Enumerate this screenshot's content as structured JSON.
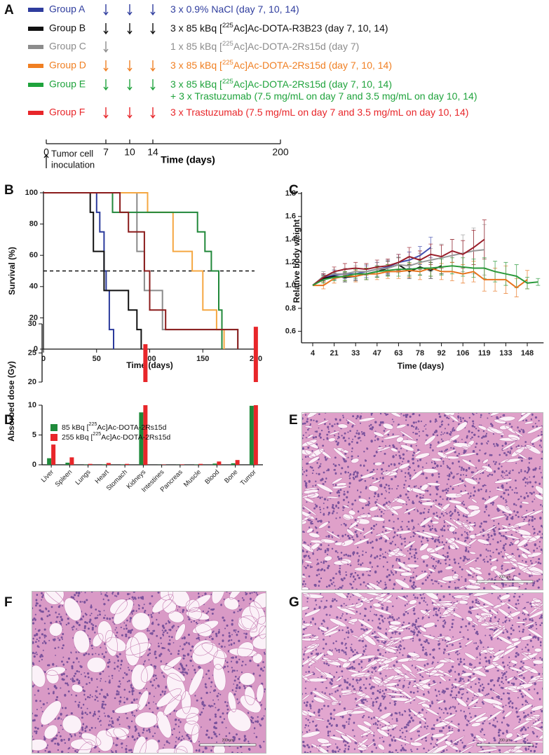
{
  "panel_labels": [
    "A",
    "B",
    "C",
    "D",
    "E",
    "F",
    "G"
  ],
  "schedule": {
    "groups": [
      {
        "name": "Group A",
        "color": "#2f3d9e",
        "doses": [
          7,
          10,
          14
        ],
        "treatment": "3 x 0.9% NaCl (day 7, 10, 14)"
      },
      {
        "name": "Group B",
        "color": "#111111",
        "doses": [
          7,
          10,
          14
        ],
        "treatment": "3 x 85 kBq [225Ac]Ac-DOTA-R3B23 (day 7, 10, 14)"
      },
      {
        "name": "Group C",
        "color": "#8c8c8c",
        "doses": [
          7
        ],
        "treatment": "1 x 85 kBq [225Ac]Ac-DOTA-2Rs15d (day 7)"
      },
      {
        "name": "Group D",
        "color": "#f07f22",
        "doses": [
          7,
          10,
          14
        ],
        "treatment": "3 x 85 kBq [225Ac]Ac-DOTA-2Rs15d (day 7, 10, 14)"
      },
      {
        "name": "Group E",
        "color": "#1fa33c",
        "doses": [
          7,
          10,
          14
        ],
        "treatment": [
          "3 x 85 kBq [225Ac]Ac-DOTA-2Rs15d (day 7, 10, 14)",
          "+ 3 x Trastuzumab (7.5 mg/mL on day 7 and 3.5 mg/mL on day 10, 14)"
        ]
      },
      {
        "name": "Group F",
        "color": "#e8262a",
        "doses": [
          7,
          10,
          14
        ],
        "treatment": "3 x Trastuzumab (7.5 mg/mL on day 7 and 3.5 mg/mL on day 10, 14)"
      }
    ],
    "xticks": [
      0,
      7,
      10,
      14,
      200
    ],
    "xlabel": "Time (days)",
    "annotation": [
      "Tumor cell",
      "inoculation"
    ]
  },
  "chart_data": [
    {
      "type": "line",
      "step": true,
      "xlabel": "Time (days)",
      "ylabel": "Survival (%)",
      "xlim": [
        0,
        200
      ],
      "xticks": [
        0,
        50,
        100,
        150,
        200
      ],
      "ylim": [
        0,
        100
      ],
      "yticks": [
        0,
        20,
        40,
        60,
        80,
        100
      ],
      "reference_line": 50,
      "series": [
        {
          "color": "#2b3a9c",
          "x": [
            0,
            50,
            50,
            53,
            53,
            57,
            57,
            59,
            59,
            62,
            62,
            66,
            66
          ],
          "values": [
            100,
            100,
            87.5,
            87.5,
            75,
            75,
            50,
            50,
            37.5,
            37.5,
            12.5,
            12.5,
            0
          ]
        },
        {
          "color": "#111111",
          "x": [
            0,
            44,
            44,
            47,
            47,
            57,
            57,
            80,
            80,
            88,
            88,
            92,
            92
          ],
          "values": [
            100,
            100,
            87.5,
            87.5,
            62.5,
            62.5,
            37.5,
            37.5,
            25,
            25,
            12.5,
            12.5,
            0
          ]
        },
        {
          "color": "#8a8a8a",
          "x": [
            0,
            88,
            88,
            95,
            95,
            112,
            112,
            183,
            183
          ],
          "values": [
            100,
            100,
            62.5,
            62.5,
            37.5,
            37.5,
            12.5,
            12.5,
            0
          ]
        },
        {
          "color": "#f5a742",
          "x": [
            0,
            98,
            98,
            122,
            122,
            140,
            140,
            150,
            150,
            163,
            163,
            170,
            170
          ],
          "values": [
            100,
            100,
            87.5,
            87.5,
            62.5,
            62.5,
            50,
            50,
            25,
            25,
            12.5,
            12.5,
            0
          ]
        },
        {
          "color": "#21883a",
          "x": [
            0,
            65,
            65,
            145,
            145,
            152,
            152,
            158,
            158,
            165,
            165,
            168,
            168
          ],
          "values": [
            100,
            100,
            87.5,
            87.5,
            75,
            75,
            62.5,
            62.5,
            50,
            50,
            25,
            25,
            0
          ]
        },
        {
          "color": "#8b1c1c",
          "x": [
            0,
            72,
            72,
            80,
            80,
            95,
            95,
            100,
            100,
            115,
            115,
            183,
            183
          ],
          "values": [
            100,
            100,
            87.5,
            87.5,
            75,
            75,
            50,
            50,
            25,
            25,
            12.5,
            12.5,
            0
          ]
        }
      ]
    },
    {
      "type": "line",
      "xlabel": "Time (days)",
      "ylabel": "Relative body weight",
      "categories": [
        "4",
        null,
        "21",
        null,
        "33",
        null,
        "47",
        null,
        "63",
        null,
        "78",
        null,
        "92",
        null,
        "106",
        null,
        "119",
        null,
        "133",
        null,
        "148",
        null
      ],
      "ylim": [
        0.5,
        1.8
      ],
      "yticks": [
        0.6,
        0.8,
        {
          "value": 1,
          "label": "1.0"
        },
        1.2,
        1.4,
        1.6,
        1.8
      ],
      "series": [
        {
          "color": "#4450b0",
          "values": [
            1.0,
            1.07,
            1.09,
            1.1,
            1.1,
            1.12,
            1.14,
            1.16,
            1.2,
            1.22,
            1.26,
            1.33,
            null,
            null,
            null,
            null,
            null,
            null,
            null,
            null,
            null,
            null
          ],
          "errors": [
            0,
            0.03,
            0.04,
            0.04,
            0.05,
            0.05,
            0.06,
            0.06,
            0.07,
            0.07,
            0.08,
            0.09,
            null,
            null,
            null,
            null,
            null,
            null,
            null,
            null,
            null,
            null
          ]
        },
        {
          "color": "#111111",
          "values": [
            1.0,
            1.06,
            1.08,
            1.07,
            1.08,
            1.1,
            1.12,
            1.15,
            1.18,
            1.12,
            1.16,
            1.13,
            1.17,
            null,
            null,
            null,
            null,
            null,
            null,
            null,
            null,
            null
          ],
          "errors": [
            0,
            0.03,
            0.03,
            0.04,
            0.04,
            0.05,
            0.05,
            0.06,
            0.06,
            0.06,
            0.07,
            0.07,
            0.07,
            null,
            null,
            null,
            null,
            null,
            null,
            null,
            null,
            null
          ]
        },
        {
          "color": "#9a9a9a",
          "values": [
            1.0,
            1.08,
            1.1,
            1.1,
            1.12,
            1.12,
            1.14,
            1.15,
            1.18,
            1.17,
            1.2,
            1.22,
            1.24,
            1.26,
            1.28,
            1.3,
            1.31,
            null,
            null,
            null,
            null,
            null
          ],
          "errors": [
            0,
            0.04,
            0.04,
            0.05,
            0.05,
            0.06,
            0.06,
            0.07,
            0.07,
            0.08,
            0.08,
            0.1,
            0.12,
            0.14,
            0.16,
            0.2,
            0.22,
            null,
            null,
            null,
            null,
            null
          ]
        },
        {
          "color": "#991e2a",
          "values": [
            1.0,
            1.07,
            1.12,
            1.14,
            1.15,
            1.14,
            1.16,
            1.17,
            1.2,
            1.25,
            1.22,
            1.27,
            1.25,
            1.3,
            1.27,
            1.33,
            1.4,
            null,
            null,
            null,
            null,
            null
          ],
          "errors": [
            0,
            0.03,
            0.04,
            0.05,
            0.05,
            0.05,
            0.06,
            0.06,
            0.07,
            0.08,
            0.08,
            0.09,
            0.1,
            0.1,
            0.12,
            0.15,
            0.17,
            null,
            null,
            null,
            null,
            null
          ]
        },
        {
          "color": "#e8741e",
          "values": [
            1.0,
            1.0,
            1.06,
            1.08,
            1.08,
            1.1,
            1.1,
            1.12,
            1.12,
            1.13,
            1.12,
            1.15,
            1.12,
            1.12,
            1.1,
            1.12,
            1.05,
            1.05,
            1.05,
            0.98,
            1.05,
            null
          ],
          "errors": [
            0,
            0.03,
            0.04,
            0.04,
            0.05,
            0.05,
            0.05,
            0.06,
            0.06,
            0.06,
            0.07,
            0.07,
            0.07,
            0.08,
            0.08,
            0.09,
            0.1,
            0.1,
            0.12,
            0.08,
            0.08,
            null
          ]
        },
        {
          "color": "#2c9a3c",
          "values": [
            1.0,
            1.05,
            1.07,
            1.08,
            1.1,
            1.1,
            1.12,
            1.13,
            1.14,
            1.14,
            1.15,
            1.15,
            1.16,
            1.17,
            1.16,
            1.15,
            1.15,
            1.12,
            1.1,
            1.08,
            1.02,
            1.03
          ],
          "errors": [
            0,
            0.03,
            0.03,
            0.04,
            0.04,
            0.05,
            0.05,
            0.05,
            0.06,
            0.06,
            0.06,
            0.07,
            0.07,
            0.07,
            0.08,
            0.08,
            0.09,
            0.09,
            0.1,
            0.1,
            0.05,
            0.03
          ]
        }
      ]
    },
    {
      "type": "bar",
      "ylabel": "Absorbed dose (Gy)",
      "categories": [
        "Liver",
        "Spleen",
        "Lungs",
        "Heart",
        "Stomach",
        "Kidneys",
        "Intestines",
        "Pancreas",
        "Muscle",
        "Blood",
        "Bone",
        "Tumor"
      ],
      "ylim": [
        0,
        30
      ],
      "axis_break": [
        10,
        20
      ],
      "yticks": [
        0,
        5,
        10,
        20,
        25,
        30
      ],
      "series": [
        {
          "name": "85 kBq [225Ac]Ac-DOTA-2Rs15d",
          "color": "#1f8a3b",
          "values": [
            1.1,
            0.35,
            0.05,
            0.07,
            0.05,
            8.8,
            0.02,
            0.02,
            0.05,
            0.2,
            0.25,
            9.9
          ]
        },
        {
          "name": "255 kBq [225Ac]Ac-DOTA-2Rs15d",
          "color": "#e8262a",
          "values": [
            3.4,
            1.25,
            0.15,
            0.3,
            0.15,
            26.5,
            0.05,
            0.07,
            0.15,
            0.55,
            0.8,
            29.5
          ]
        }
      ]
    }
  ],
  "histology": [
    {
      "scale_label": "200 µm"
    },
    {
      "scale_label": "200 µm"
    },
    {
      "scale_label": "200 µm"
    }
  ]
}
